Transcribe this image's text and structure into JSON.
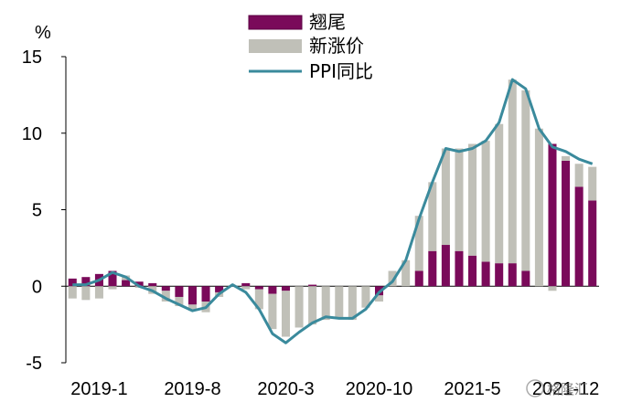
{
  "chart_data": {
    "type": "bar",
    "unit_label": "%",
    "categories": [
      "2019-1",
      "2019-2",
      "2019-3",
      "2019-4",
      "2019-5",
      "2019-6",
      "2019-7",
      "2019-8",
      "2019-9",
      "2019-10",
      "2019-11",
      "2019-12",
      "2020-1",
      "2020-2",
      "2020-3",
      "2020-4",
      "2020-5",
      "2020-6",
      "2020-7",
      "2020-8",
      "2020-9",
      "2020-10",
      "2020-11",
      "2020-12",
      "2021-1",
      "2021-2",
      "2021-3",
      "2021-4",
      "2021-5",
      "2021-6",
      "2021-7",
      "2021-8",
      "2021-9",
      "2021-10",
      "2021-11",
      "2021-12",
      "2022-1",
      "2022-2",
      "2022-3",
      "2022-4"
    ],
    "x_tick_labels": [
      {
        "index": 0,
        "label": "2019-1"
      },
      {
        "index": 7,
        "label": "2019-8"
      },
      {
        "index": 14,
        "label": "2020-3"
      },
      {
        "index": 21,
        "label": "2020-10"
      },
      {
        "index": 28,
        "label": "2021-5"
      },
      {
        "index": 35,
        "label": "2021-12"
      }
    ],
    "yticks": [
      15,
      10,
      5,
      0,
      -5
    ],
    "ylim": [
      -5,
      15
    ],
    "series": [
      {
        "name": "翘尾",
        "color": "#7a0a5a",
        "values": [
          0.5,
          0.6,
          0.8,
          1.0,
          0.4,
          0.3,
          0.2,
          -0.3,
          -0.7,
          -1.2,
          -1.0,
          -0.4,
          0.0,
          0.2,
          -0.2,
          -0.5,
          -0.3,
          0.0,
          0.1,
          0.0,
          0.0,
          0.0,
          0.0,
          -0.6,
          0.0,
          0.0,
          1.0,
          2.3,
          2.7,
          2.3,
          2.0,
          1.6,
          1.5,
          1.5,
          1.0,
          0.0,
          9.3,
          8.2,
          6.5,
          5.6
        ]
      },
      {
        "name": "新涨价",
        "color": "#c0c0b8",
        "values": [
          -0.8,
          -0.9,
          -0.8,
          -0.2,
          0.3,
          -0.1,
          -0.5,
          -0.7,
          -0.6,
          -0.4,
          -0.7,
          -0.3,
          0.0,
          -0.2,
          -1.3,
          -2.3,
          -3.0,
          -2.7,
          -2.5,
          -2.2,
          -2.1,
          -2.2,
          -1.4,
          -0.4,
          1.0,
          1.7,
          3.6,
          4.5,
          6.3,
          6.7,
          7.3,
          7.9,
          9.1,
          12.0,
          11.8,
          10.3,
          -0.3,
          0.3,
          1.5,
          2.2
        ]
      },
      {
        "name": "PPI同比",
        "color": "#3a8a9c",
        "values": [
          0.1,
          0.1,
          0.4,
          0.9,
          0.6,
          0.0,
          -0.3,
          -0.8,
          -1.2,
          -1.6,
          -1.4,
          -0.5,
          0.1,
          -0.4,
          -1.5,
          -3.1,
          -3.7,
          -3.0,
          -2.4,
          -2.0,
          -2.1,
          -2.1,
          -1.5,
          -0.4,
          0.3,
          1.7,
          4.4,
          6.8,
          9.0,
          8.8,
          9.0,
          9.5,
          10.7,
          13.5,
          12.9,
          10.3,
          9.1,
          8.8,
          8.3,
          8.0
        ]
      }
    ],
    "watermark": "格隆汇"
  }
}
